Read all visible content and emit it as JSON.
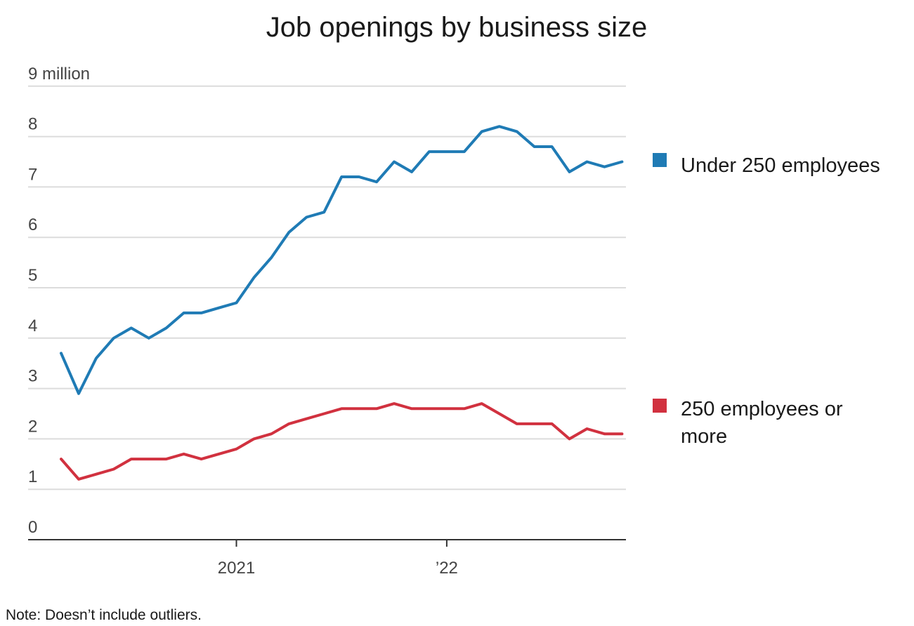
{
  "chart_data": {
    "type": "line",
    "title": "Job openings by business size",
    "ylabel": "",
    "xlabel": "",
    "ylim": [
      0,
      9
    ],
    "y_ticks": [
      {
        "value": 0,
        "label": "0"
      },
      {
        "value": 1,
        "label": "1"
      },
      {
        "value": 2,
        "label": "2"
      },
      {
        "value": 3,
        "label": "3"
      },
      {
        "value": 4,
        "label": "4"
      },
      {
        "value": 5,
        "label": "5"
      },
      {
        "value": 6,
        "label": "6"
      },
      {
        "value": 7,
        "label": "7"
      },
      {
        "value": 8,
        "label": "8"
      },
      {
        "value": 9,
        "label": "9 million"
      }
    ],
    "x": [
      "2020-03",
      "2020-04",
      "2020-05",
      "2020-06",
      "2020-07",
      "2020-08",
      "2020-09",
      "2020-10",
      "2020-11",
      "2020-12",
      "2021-01",
      "2021-02",
      "2021-03",
      "2021-04",
      "2021-05",
      "2021-06",
      "2021-07",
      "2021-08",
      "2021-09",
      "2021-10",
      "2021-11",
      "2021-12",
      "2022-01",
      "2022-02",
      "2022-03",
      "2022-04",
      "2022-05",
      "2022-06",
      "2022-07",
      "2022-08",
      "2022-09",
      "2022-10",
      "2022-11",
      "2022-12",
      "2023-01"
    ],
    "x_ticks": [
      {
        "value": "2021-01",
        "label": "2021"
      },
      {
        "value": "2022-01",
        "label": "’22"
      }
    ],
    "grid": true,
    "legend_position": "right",
    "colors": {
      "under_250": "#1f7bb5",
      "over_250": "#d1313f"
    },
    "series": [
      {
        "name": "Under 250 employees",
        "color": "#1f7bb5",
        "values": [
          3.7,
          2.9,
          3.6,
          4.0,
          4.2,
          4.0,
          4.2,
          4.5,
          4.5,
          4.6,
          4.7,
          5.2,
          5.6,
          6.1,
          6.4,
          6.5,
          7.2,
          7.2,
          7.1,
          7.5,
          7.3,
          7.7,
          7.7,
          7.7,
          8.1,
          8.2,
          8.1,
          7.8,
          7.8,
          7.3,
          7.5,
          7.4,
          7.5,
          null,
          null
        ]
      },
      {
        "name": "250 employees or more",
        "color": "#d1313f",
        "values": [
          1.6,
          1.2,
          1.3,
          1.4,
          1.6,
          1.6,
          1.6,
          1.7,
          1.6,
          1.7,
          1.8,
          2.0,
          2.1,
          2.3,
          2.4,
          2.5,
          2.6,
          2.6,
          2.6,
          2.7,
          2.6,
          2.6,
          2.6,
          2.6,
          2.7,
          2.5,
          2.3,
          2.3,
          2.3,
          2.0,
          2.2,
          2.1,
          2.1,
          null,
          null
        ]
      }
    ],
    "legend": [
      {
        "lines": [
          "Under 250 employees"
        ]
      },
      {
        "lines": [
          "250 employees or",
          "more"
        ]
      }
    ],
    "note": "Note: Doesn’t include outliers."
  }
}
